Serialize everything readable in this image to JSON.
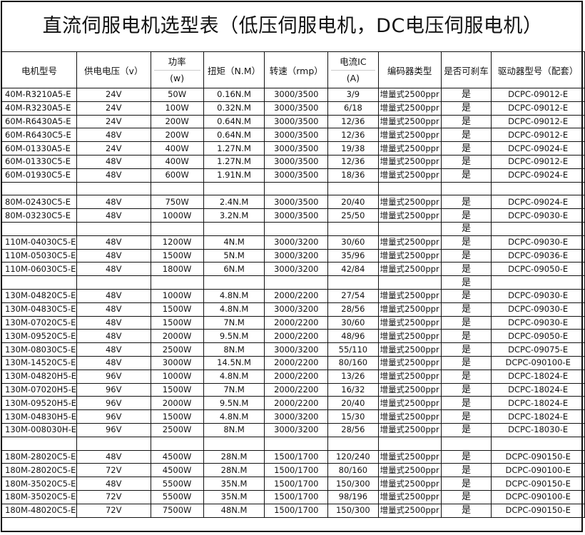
{
  "title": "直流伺服电机选型表（低压伺服电机，DC电压伺服电机）",
  "headers": {
    "model": "电机型号",
    "voltage": "供电电压（v）",
    "power": "功率",
    "power_unit": "(w)",
    "torque": "扭矩（N.M）",
    "speed": "转速（rmp）",
    "current": "电流IC",
    "current_unit": "(A)",
    "encoder": "编码器类型",
    "brake": "是否可刹车",
    "driver": "驱动器型号（配套）"
  },
  "rows": [
    [
      "40M-R3210A5-E",
      "24V",
      "50W",
      "0.16N.M",
      "3000/3500",
      "3/9",
      "增量式2500ppr",
      "是",
      "DCPC-09012-E"
    ],
    [
      "40M-R3230A5-E",
      "24V",
      "100W",
      "0.32N.M",
      "3000/3500",
      "6/18",
      "增量式2500ppr",
      "是",
      "DCPC-09012-E"
    ],
    [
      "60M-R6430A5-E",
      "24V",
      "200W",
      "0.64N.M",
      "3000/3500",
      "12/36",
      "增量式2500ppr",
      "是",
      "DCPC-09012-E"
    ],
    [
      "60M-R6430C5-E",
      "48V",
      "200W",
      "0.64N.M",
      "3000/3500",
      "12/36",
      "增量式2500ppr",
      "是",
      "DCPC-09012-E"
    ],
    [
      "60M-01330A5-E",
      "24V",
      "400W",
      "1.27N.M",
      "3000/3500",
      "19/38",
      "增量式2500ppr",
      "是",
      "DCPC-09024-E"
    ],
    [
      "60M-01330C5-E",
      "48V",
      "400W",
      "1.27N.M",
      "3000/3500",
      "12/36",
      "增量式2500ppr",
      "是",
      "DCPC-09012-E"
    ],
    [
      "60M-01930C5-E",
      "48V",
      "600W",
      "1.91N.M",
      "3000/3500",
      "18/36",
      "增量式2500ppr",
      "是",
      "DCPC-09024-E"
    ],
    [
      "",
      "",
      "",
      "",
      "",
      "",
      "",
      "",
      ""
    ],
    [
      "80M-02430C5-E",
      "48V",
      "750W",
      "2.4N.M",
      "3000/3500",
      "20/40",
      "增量式2500ppr",
      "是",
      "DCPC-09024-E"
    ],
    [
      "80M-03230C5-E",
      "48V",
      "1000W",
      "3.2N.M",
      "3000/3500",
      "25/50",
      "增量式2500ppr",
      "是",
      "DCPC-09030-E"
    ],
    [
      "",
      "",
      "",
      "",
      "",
      "",
      "",
      "是",
      ""
    ],
    [
      "110M-04030C5-E",
      "48V",
      "1200W",
      "4N.M",
      "3000/3200",
      "30/60",
      "增量式2500ppr",
      "是",
      "DCPC-09030-E"
    ],
    [
      "110M-05030C5-E",
      "48V",
      "1500W",
      "5N.M",
      "3000/3200",
      "35/96",
      "增量式2500ppr",
      "是",
      "DCPC-09036-E"
    ],
    [
      "110M-06030C5-E",
      "48V",
      "1800W",
      "6N.M",
      "3000/3200",
      "42/84",
      "增量式2500ppr",
      "是",
      "DCPC-09050-E"
    ],
    [
      "",
      "",
      "",
      "",
      "",
      "",
      "",
      "是",
      ""
    ],
    [
      "130M-04820C5-E",
      "48V",
      "1000W",
      "4.8N.M",
      "2000/2200",
      "27/54",
      "增量式2500ppr",
      "是",
      "DCPC-09030-E"
    ],
    [
      "130M-04830C5-E",
      "48V",
      "1500W",
      "4.8N.M",
      "3000/3200",
      "28/56",
      "增量式2500ppr",
      "是",
      "DCPC-09030-E"
    ],
    [
      "130M-07020C5-E",
      "48V",
      "1500W",
      "7N.M",
      "2000/2200",
      "30/60",
      "增量式2500ppr",
      "是",
      "DCPC-09030-E"
    ],
    [
      "130M-09520C5-E",
      "48V",
      "2000W",
      "9.5N.M",
      "2000/2200",
      "48/96",
      "增量式2500ppr",
      "是",
      "DCPC-09050-E"
    ],
    [
      "130M-08030C5-E",
      "48V",
      "2500W",
      "8N.M",
      "3000/3200",
      "55/110",
      "增量式2500ppr",
      "是",
      "DCPC-09075-E"
    ],
    [
      "130M-14520C5-E",
      "48V",
      "3000W",
      "14.5N.M",
      "2000/2200",
      "80/160",
      "增量式2500ppr",
      "是",
      "DCPC-090100-E"
    ],
    [
      "130M-04820H5-E",
      "96V",
      "1000W",
      "4.8N.M",
      "2000/2200",
      "13/26",
      "增量式2500ppr",
      "是",
      "DCPC-18024-E"
    ],
    [
      "130M-07020H5-E",
      "96V",
      "1500W",
      "7N.M",
      "2000/2200",
      "16/32",
      "增量式2500ppr",
      "是",
      "DCPC-18024-E"
    ],
    [
      "130M-09520H5-E",
      "96V",
      "2000W",
      "9.5N.M",
      "2000/2200",
      "20/40",
      "增量式2500ppr",
      "是",
      "DCPC-18024-E"
    ],
    [
      "130M-04830H5-E",
      "96V",
      "1500W",
      "4.8N.M",
      "3000/3200",
      "15/30",
      "增量式2500ppr",
      "是",
      "DCPC-18024-E"
    ],
    [
      "130M-008030H-E",
      "96V",
      "2500W",
      "8N.M",
      "3000/3200",
      "28/56",
      "增量式2500ppr",
      "是",
      "DCPC-18030-E"
    ],
    [
      "",
      "",
      "",
      "",
      "",
      "",
      "",
      "",
      ""
    ],
    [
      "180M-28020C5-E",
      "48V",
      "4500W",
      "28N.M",
      "1500/1700",
      "120/240",
      "增量式2500ppr",
      "是",
      "DCPC-090150-E"
    ],
    [
      "180M-28020C5-E",
      "72V",
      "4500W",
      "28N.M",
      "1500/1700",
      "80/160",
      "增量式2500ppr",
      "是",
      "DCPC-090100-E"
    ],
    [
      "180M-35020C5-E",
      "48V",
      "5500W",
      "35N.M",
      "1500/1700",
      "150/300",
      "增量式2500ppr",
      "是",
      "DCPC-090150-E"
    ],
    [
      "180M-35020C5-E",
      "72V",
      "5500W",
      "35N.M",
      "1500/1700",
      "98/196",
      "增量式2500ppr",
      "是",
      "DCPC-090100-E"
    ],
    [
      "180M-48020C5-E",
      "72V",
      "7500W",
      "48N.M",
      "1500/1700",
      "150/300",
      "增量式2500ppr",
      "是",
      "DCPC-090150-E"
    ]
  ]
}
